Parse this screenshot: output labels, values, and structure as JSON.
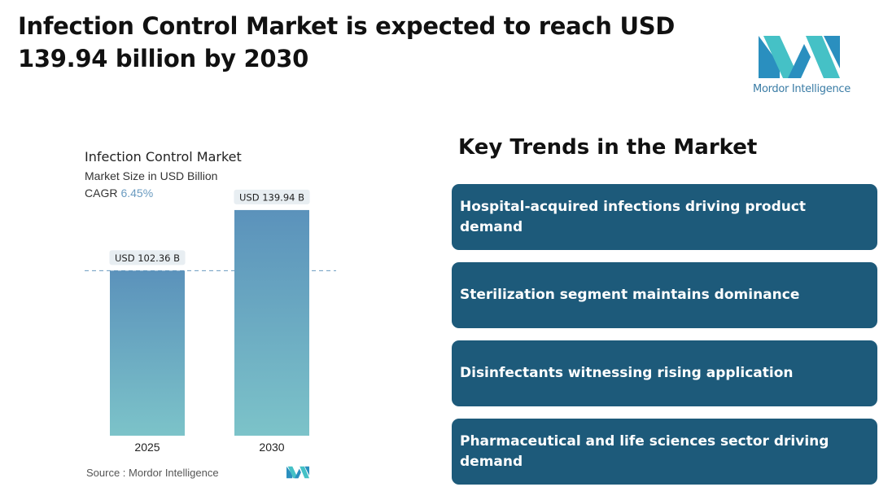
{
  "headline": "Infection Control Market is expected to reach USD 139.94 billion by 2030",
  "brand": {
    "name": "Mordor Intelligence",
    "colors": [
      "#2a8fbf",
      "#45c1c6"
    ]
  },
  "chart_data": {
    "type": "bar",
    "title": "Infection Control Market",
    "subtitle": "Market Size in USD Billion",
    "cagr_label": "CAGR",
    "cagr_value": "6.45%",
    "categories": [
      "2025",
      "2030"
    ],
    "values": [
      102.36,
      139.94
    ],
    "data_labels": [
      "USD 102.36 B",
      "USD 139.94 B"
    ],
    "ylim": [
      0,
      150
    ],
    "reference_line_value": 102.36,
    "bar_gradient": [
      "#5b92bb",
      "#7cc3c9"
    ],
    "grid": false,
    "legend": "none"
  },
  "source": "Source :  Mordor Intelligence",
  "trends": {
    "title": "Key Trends in the Market",
    "items": [
      "Hospital-acquired infections driving product demand",
      "Sterilization segment maintains dominance",
      "Disinfectants witnessing rising application",
      "Pharmaceutical and life sciences sector driving demand"
    ]
  }
}
